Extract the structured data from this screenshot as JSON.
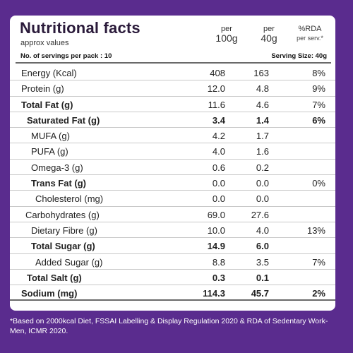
{
  "header": {
    "title": "Nutritional facts",
    "subtitle": "approx values",
    "servings_per_pack": "No. of servings per pack : 10",
    "col1_line1": "per",
    "col1_line2": "100g",
    "col2_line1": "per",
    "col2_line2": "40g",
    "col3_line1": "%RDA",
    "col3_line2": "per serv.*",
    "serving_size": "Serving Size: 40g"
  },
  "rows": [
    {
      "label": "Energy (Kcal)",
      "per100": "408",
      "per40": "163",
      "rda": "8%"
    },
    {
      "label": "Protein (g)",
      "per100": "12.0",
      "per40": "4.8",
      "rda": "9%"
    },
    {
      "label": "Total Fat (g)",
      "per100": "11.6",
      "per40": "4.6",
      "rda": "7%"
    },
    {
      "label": "Saturated Fat (g)",
      "per100": "3.4",
      "per40": "1.4",
      "rda": "6%"
    },
    {
      "label": "MUFA (g)",
      "per100": "4.2",
      "per40": "1.7",
      "rda": ""
    },
    {
      "label": "PUFA (g)",
      "per100": "4.0",
      "per40": "1.6",
      "rda": ""
    },
    {
      "label": "Omega-3 (g)",
      "per100": "0.6",
      "per40": "0.2",
      "rda": ""
    },
    {
      "label": "Trans Fat (g)",
      "per100": "0.0",
      "per40": "0.0",
      "rda": "0%"
    },
    {
      "label": "Cholesterol (mg)",
      "per100": "0.0",
      "per40": "0.0",
      "rda": ""
    },
    {
      "label": "Carbohydrates (g)",
      "per100": "69.0",
      "per40": "27.6",
      "rda": ""
    },
    {
      "label": "Dietary Fibre (g)",
      "per100": "10.0",
      "per40": "4.0",
      "rda": "13%"
    },
    {
      "label": "Total Sugar (g)",
      "per100": "14.9",
      "per40": "6.0",
      "rda": ""
    },
    {
      "label": "Added Sugar (g)",
      "per100": "8.8",
      "per40": "3.5",
      "rda": "7%"
    },
    {
      "label": "Total Salt (g)",
      "per100": "0.3",
      "per40": "0.1",
      "rda": ""
    },
    {
      "label": "Sodium (mg)",
      "per100": "114.3",
      "per40": "45.7",
      "rda": "2%"
    }
  ],
  "footnote": "*Based on 2000kcal Diet, FSSAI Labelling & Display Regulation 2020 & RDA of Sedentary Work- Men, ICMR 2020.",
  "colors": {
    "background": "#5a2c8e",
    "panel": "#ffffff"
  }
}
